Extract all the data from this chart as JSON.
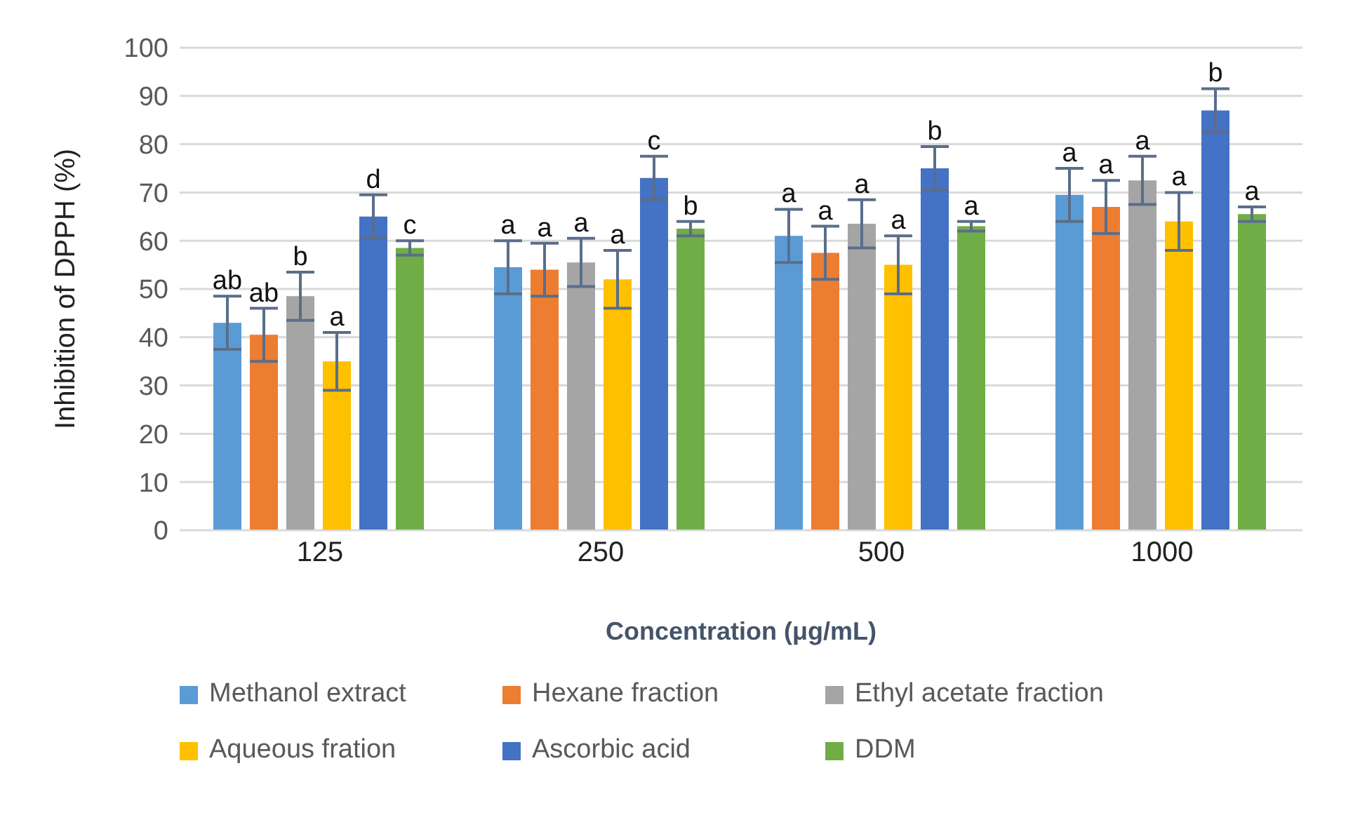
{
  "chart_data": {
    "type": "bar",
    "xlabel": "Concentration (μg/mL)",
    "ylabel": "Inhibition of DPPH (%)",
    "categories": [
      "125",
      "250",
      "500",
      "1000"
    ],
    "ylim": [
      0,
      100
    ],
    "yticks": [
      0,
      10,
      20,
      30,
      40,
      50,
      60,
      70,
      80,
      90,
      100
    ],
    "grid": "y",
    "legend": "bottom",
    "series": [
      {
        "name": "Methanol extract",
        "color": "#5b9bd5",
        "values": [
          43,
          54.5,
          61,
          69.5
        ],
        "errors": [
          5.5,
          5.5,
          5.5,
          5.5
        ],
        "value_labels": [
          "ab",
          "a",
          "a",
          "a"
        ]
      },
      {
        "name": "Hexane fraction",
        "color": "#ed7d31",
        "values": [
          40.5,
          54,
          57.5,
          67
        ],
        "errors": [
          5.5,
          5.5,
          5.5,
          5.5
        ],
        "value_labels": [
          "ab",
          "a",
          "a",
          "a"
        ]
      },
      {
        "name": "Ethyl acetate fraction",
        "color": "#a5a5a5",
        "values": [
          48.5,
          55.5,
          63.5,
          72.5
        ],
        "errors": [
          5,
          5,
          5,
          5
        ],
        "value_labels": [
          "b",
          "a",
          "a",
          "a"
        ]
      },
      {
        "name": "Aqueous fration",
        "color": "#ffc000",
        "values": [
          35,
          52,
          55,
          64
        ],
        "errors": [
          6,
          6,
          6,
          6
        ],
        "value_labels": [
          "a",
          "a",
          "a",
          "a"
        ]
      },
      {
        "name": "Ascorbic acid",
        "color": "#4472c4",
        "values": [
          65,
          73,
          75,
          87
        ],
        "errors": [
          4.5,
          4.5,
          4.5,
          4.5
        ],
        "value_labels": [
          "d",
          "c",
          "b",
          "b"
        ]
      },
      {
        "name": "DDM",
        "color": "#70ad47",
        "values": [
          58.5,
          62.5,
          63,
          65.5
        ],
        "errors": [
          1.5,
          1.5,
          1,
          1.5
        ],
        "value_labels": [
          "c",
          "b",
          "a",
          "a"
        ]
      }
    ]
  }
}
